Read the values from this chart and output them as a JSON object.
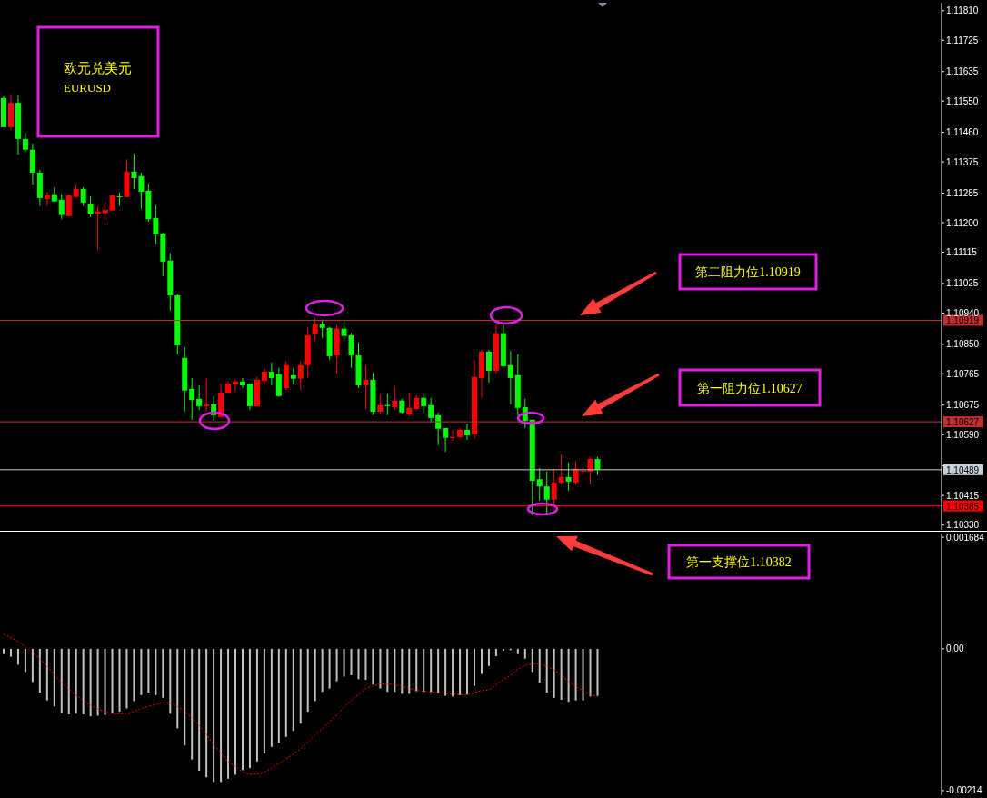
{
  "chart_data": [
    {
      "type": "candlestick",
      "title": "欧元兑美元",
      "subtitle": "EURUSD",
      "categories": [
        null,
        null,
        null,
        null,
        null,
        null,
        null,
        null,
        null,
        null,
        null,
        null,
        null,
        null,
        null,
        null,
        null,
        null,
        null,
        null,
        null,
        null,
        null,
        null,
        null,
        null,
        null,
        null,
        null,
        null,
        null,
        null,
        null,
        null,
        null,
        null,
        null,
        null,
        null,
        null,
        null,
        null,
        null,
        null,
        null,
        null,
        null,
        null,
        null,
        null,
        null,
        null,
        null,
        null,
        null,
        null,
        null,
        null,
        null,
        null,
        null,
        null,
        null,
        null,
        null,
        null,
        null,
        null,
        null,
        null,
        null,
        null,
        null,
        null,
        null,
        null,
        null,
        null,
        null,
        null,
        null,
        null,
        null,
        null,
        null,
        null,
        null,
        null,
        null,
        null,
        null,
        null,
        null,
        null,
        null,
        null,
        null,
        null,
        null,
        null,
        null,
        null,
        null,
        null,
        null,
        null,
        null,
        null,
        null,
        null,
        null,
        null,
        null,
        null,
        null,
        null,
        null,
        null,
        null,
        null,
        null,
        null,
        null,
        null,
        null,
        null,
        null,
        null,
        null,
        null
      ],
      "ohlc": [
        [
          1.11559,
          1.11564,
          1.11475,
          1.11475
        ],
        [
          1.11475,
          1.1157,
          1.11467,
          1.11545
        ],
        [
          1.11545,
          1.11567,
          1.11396,
          1.11441
        ],
        [
          1.11441,
          1.11459,
          1.11405,
          1.1141
        ],
        [
          1.1141,
          1.11428,
          1.1131,
          1.11344
        ],
        [
          1.11344,
          1.11352,
          1.11248,
          1.11271
        ],
        [
          1.11268,
          1.11289,
          1.11248,
          1.11279
        ],
        [
          1.11282,
          1.11302,
          1.11261,
          1.11261
        ],
        [
          1.11266,
          1.11282,
          1.1121,
          1.11222
        ],
        [
          1.11219,
          1.11282,
          1.11219,
          1.11279
        ],
        [
          1.11274,
          1.1131,
          1.11271,
          1.11297
        ],
        [
          1.11297,
          1.11302,
          1.11248,
          1.11258
        ],
        [
          1.11255,
          1.11276,
          1.11216,
          1.11224
        ],
        [
          1.11224,
          1.11248,
          1.11122,
          1.11232
        ],
        [
          1.11227,
          1.11258,
          1.11208,
          1.11237
        ],
        [
          1.11235,
          1.11282,
          1.11235,
          1.11279
        ],
        [
          1.11276,
          1.11287,
          1.11248,
          1.11274
        ],
        [
          1.11274,
          1.11383,
          1.11274,
          1.11347
        ],
        [
          1.11347,
          1.11399,
          1.11297,
          1.11328
        ],
        [
          1.11334,
          1.11344,
          1.1124,
          1.11289
        ],
        [
          1.11292,
          1.11313,
          1.11203,
          1.1121
        ],
        [
          1.11213,
          1.1125,
          1.11138,
          1.11166
        ],
        [
          1.11169,
          1.11171,
          1.11046,
          1.11088
        ],
        [
          1.11091,
          1.11112,
          1.10947,
          1.10991
        ],
        [
          1.10991,
          1.10994,
          1.10821,
          1.10847
        ],
        [
          1.10811,
          1.10842,
          1.10656,
          1.10717
        ],
        [
          1.10722,
          1.10753,
          1.10633,
          1.1069
        ],
        [
          1.10693,
          1.10732,
          1.10661,
          1.10672
        ],
        [
          1.10672,
          1.10751,
          1.10656,
          1.10677
        ],
        [
          1.10677,
          1.10701,
          1.1063,
          1.10646
        ],
        [
          1.10641,
          1.10737,
          1.10641,
          1.10711
        ],
        [
          1.10711,
          1.10743,
          1.10709,
          1.10737
        ],
        [
          1.10735,
          1.10748,
          1.10714,
          1.10743
        ],
        [
          1.10743,
          1.10753,
          1.10724,
          1.10732
        ],
        [
          1.10737,
          1.10737,
          1.10661,
          1.10672
        ],
        [
          1.10672,
          1.10756,
          1.10672,
          1.10748
        ],
        [
          1.10745,
          1.10782,
          1.10735,
          1.10771
        ],
        [
          1.10771,
          1.10798,
          1.10732,
          1.10753
        ],
        [
          1.10764,
          1.10782,
          1.10698,
          1.10701
        ],
        [
          1.10724,
          1.10803,
          1.10719,
          1.1079
        ],
        [
          1.10761,
          1.10782,
          1.10735,
          1.10751
        ],
        [
          1.10751,
          1.10803,
          1.10719,
          1.1079
        ],
        [
          1.1079,
          1.109,
          1.10753,
          1.10876
        ],
        [
          1.10879,
          1.10926,
          1.1086,
          1.10908
        ],
        [
          1.10908,
          1.10921,
          1.10868,
          1.10897
        ],
        [
          1.10897,
          1.109,
          1.10805,
          1.10816
        ],
        [
          1.10818,
          1.10905,
          1.10766,
          1.10895
        ],
        [
          1.10895,
          1.10916,
          1.10866,
          1.10874
        ],
        [
          1.10876,
          1.10882,
          1.10782,
          1.10818
        ],
        [
          1.10818,
          1.10855,
          1.10724,
          1.10732
        ],
        [
          1.10732,
          1.1079,
          1.10664,
          1.10748
        ],
        [
          1.10748,
          1.10769,
          1.10646,
          1.10656
        ],
        [
          1.10656,
          1.10706,
          1.10648,
          1.10675
        ],
        [
          1.10675,
          1.10709,
          1.10646,
          1.10672
        ],
        [
          1.10669,
          1.1073,
          1.10661,
          1.10688
        ],
        [
          1.10688,
          1.10693,
          1.10651,
          1.10654
        ],
        [
          1.10648,
          1.10711,
          1.10643,
          1.10667
        ],
        [
          1.10664,
          1.10703,
          1.10661,
          1.10696
        ],
        [
          1.10696,
          1.10706,
          1.10651,
          1.10672
        ],
        [
          1.10675,
          1.10696,
          1.10625,
          1.10638
        ],
        [
          1.10646,
          1.10654,
          1.1056,
          1.10607
        ],
        [
          1.10609,
          1.10609,
          1.10541,
          1.10581
        ],
        [
          1.10581,
          1.10604,
          1.10573,
          1.10583
        ],
        [
          1.10583,
          1.10609,
          1.10581,
          1.10604
        ],
        [
          1.10604,
          1.10622,
          1.10575,
          1.10588
        ],
        [
          1.10591,
          1.10805,
          1.10578,
          1.10756
        ],
        [
          1.10753,
          1.10834,
          1.10696,
          1.10829
        ],
        [
          1.10829,
          1.10834,
          1.1074,
          1.10774
        ],
        [
          1.10774,
          1.10908,
          1.10766,
          1.10882
        ],
        [
          1.10882,
          1.10908,
          1.10787,
          1.10787
        ],
        [
          1.1079,
          1.10831,
          1.10677,
          1.10753
        ],
        [
          1.10761,
          1.10821,
          1.10646,
          1.10667
        ],
        [
          1.10669,
          1.10693,
          1.10609,
          1.1063
        ],
        [
          1.10633,
          1.10633,
          1.10358,
          1.10457
        ],
        [
          1.10462,
          1.10494,
          1.104,
          1.10441
        ],
        [
          1.10441,
          1.10484,
          1.10358,
          1.10403
        ],
        [
          1.10403,
          1.10489,
          1.10387,
          1.10452
        ],
        [
          1.10452,
          1.10534,
          1.10447,
          1.10468
        ],
        [
          1.10468,
          1.1051,
          1.10429,
          1.10455
        ],
        [
          1.10452,
          1.10515,
          1.10447,
          1.10492
        ],
        [
          1.10484,
          1.10497,
          1.10479,
          1.10486
        ],
        [
          1.10484,
          1.10526,
          1.10447,
          1.1052
        ],
        [
          1.1052,
          1.10526,
          1.10473,
          1.10489
        ],
        null,
        null,
        null,
        null,
        null,
        null,
        null,
        null,
        null,
        null,
        null,
        null,
        null,
        null,
        null,
        null,
        null,
        null,
        null,
        null,
        null,
        null,
        null,
        null,
        null,
        null,
        null,
        null,
        null,
        null,
        null,
        null,
        null,
        null,
        null,
        null,
        null,
        null,
        null,
        null,
        null,
        null,
        null,
        null,
        null,
        null,
        null
      ],
      "colors": [
        "#00ff00",
        "#ff0000",
        "#00ff00",
        "#00ff00",
        "#00ff00",
        "#00ff00",
        "#ff0000",
        "#00ff00",
        "#00ff00",
        "#ff0000",
        "#ff0000",
        "#00ff00",
        "#00ff00",
        "#ff0000",
        "#ff0000",
        "#ff0000",
        "#00ff00",
        "#ff0000",
        "#00ff00",
        "#00ff00",
        "#00ff00",
        "#00ff00",
        "#00ff00",
        "#00ff00",
        "#00ff00",
        "#00ff00",
        "#00ff00",
        "#00ff00",
        "#ff0000",
        "#00ff00",
        "#ff0000",
        "#ff0000",
        "#ff0000",
        "#00ff00",
        "#00ff00",
        "#ff0000",
        "#ff0000",
        "#00ff00",
        "#00ff00",
        "#ff0000",
        "#00ff00",
        "#ff0000",
        "#ff0000",
        "#ff0000",
        "#00ff00",
        "#00ff00",
        "#ff0000",
        "#00ff00",
        "#00ff00",
        "#00ff00",
        "#ff0000",
        "#00ff00",
        "#ff0000",
        "#00ff00",
        "#ff0000",
        "#00ff00",
        "#ff0000",
        "#ff0000",
        "#00ff00",
        "#00ff00",
        "#00ff00",
        "#00ff00",
        "#ff0000",
        "#ff0000",
        "#00ff00",
        "#ff0000",
        "#ff0000",
        "#00ff00",
        "#ff0000",
        "#00ff00",
        "#00ff00",
        "#00ff00",
        "#00ff00",
        "#00ff00",
        "#00ff00",
        "#00ff00",
        "#ff0000",
        "#ff0000",
        "#00ff00",
        "#ff0000",
        "#ff0000",
        "#ff0000",
        "#00ff00",
        null,
        null,
        null,
        null,
        null,
        null,
        null,
        null,
        null,
        null,
        null,
        null,
        null,
        null,
        null,
        null,
        null,
        null,
        null,
        null,
        null,
        null,
        null,
        null,
        null,
        null,
        null,
        null,
        null,
        null,
        null,
        null,
        null,
        null,
        null,
        null,
        null,
        null,
        null,
        null,
        null,
        null,
        null,
        null,
        null,
        null,
        null
      ],
      "ylim": [
        1.10316,
        1.11833
      ],
      "yticks": [
        {
          "value": 1.1181,
          "label": "1.11810"
        },
        {
          "value": 1.11725,
          "label": "1.11725"
        },
        {
          "value": 1.11635,
          "label": "1.11635"
        },
        {
          "value": 1.1155,
          "label": "1.11550"
        },
        {
          "value": 1.1146,
          "label": "1.11460"
        },
        {
          "value": 1.11375,
          "label": "1.11375"
        },
        {
          "value": 1.11285,
          "label": "1.11285"
        },
        {
          "value": 1.112,
          "label": "1.11200"
        },
        {
          "value": 1.11115,
          "label": "1.11115"
        },
        {
          "value": 1.11025,
          "label": "1.11025"
        },
        {
          "value": 1.1094,
          "label": "1.10940"
        },
        {
          "value": 1.1085,
          "label": "1.10850"
        },
        {
          "value": 1.10765,
          "label": "1.10765"
        },
        {
          "value": 1.10675,
          "label": "1.10675"
        },
        {
          "value": 1.1059,
          "label": "1.10590"
        },
        {
          "value": 1.105,
          "label": null
        },
        {
          "value": 1.10415,
          "label": "1.10415"
        },
        {
          "value": 1.1033,
          "label": "1.10330"
        }
      ],
      "ref_lines": [
        {
          "axis": "y",
          "value": 1.10919,
          "label": "1.10919",
          "color": "#c03030"
        },
        {
          "axis": "y",
          "value": 1.10627,
          "label": "1.10627",
          "color": "#c03030"
        },
        {
          "axis": "y",
          "value": 1.10489,
          "label": "1.10489",
          "color": "#c8d0d8"
        },
        {
          "axis": "y",
          "value": 1.10385,
          "label": "1.10385",
          "color": "#ff0000"
        }
      ],
      "annotations": [
        "第二阻力位1.10919",
        "第一阻力位1.10627",
        "第一支撑位1.10382"
      ]
    },
    {
      "type": "bar",
      "categories": [
        null,
        null,
        null,
        null,
        null,
        null,
        null,
        null,
        null,
        null,
        null,
        null,
        null,
        null,
        null,
        null,
        null,
        null,
        null,
        null,
        null,
        null,
        null,
        null,
        null,
        null,
        null,
        null,
        null,
        null,
        null,
        null,
        null,
        null,
        null,
        null,
        null,
        null,
        null,
        null,
        null,
        null,
        null,
        null,
        null,
        null,
        null,
        null,
        null,
        null,
        null,
        null,
        null,
        null,
        null,
        null,
        null,
        null,
        null,
        null,
        null,
        null,
        null,
        null,
        null,
        null,
        null,
        null,
        null,
        null,
        null,
        null,
        null,
        null,
        null,
        null,
        null,
        null,
        null,
        null,
        null,
        null,
        null,
        null,
        null,
        null,
        null,
        null,
        null,
        null,
        null,
        null,
        null,
        null,
        null,
        null,
        null,
        null,
        null,
        null,
        null,
        null,
        null,
        null,
        null,
        null,
        null,
        null,
        null,
        null,
        null,
        null,
        null,
        null,
        null,
        null,
        null,
        null,
        null,
        null,
        null,
        null,
        null,
        null,
        null,
        null,
        null,
        null,
        null,
        null
      ],
      "series": [
        {
          "type": "bar",
          "color": "#c0c0c0",
          "values": [
            -8e-05,
            -0.00012,
            -0.00024,
            -0.00035,
            -0.0005,
            -0.00066,
            -0.00078,
            -0.00087,
            -0.00097,
            -0.00099,
            -0.00098,
            -0.00099,
            -0.00102,
            -0.00101,
            -0.001,
            -0.00097,
            -0.00095,
            -0.0009,
            -0.00079,
            -0.0007,
            -0.00066,
            -0.0007,
            -0.00074,
            -0.00098,
            -0.0012,
            -0.00146,
            -0.00167,
            -0.00184,
            -0.00194,
            -0.00201,
            -0.00201,
            -0.00196,
            -0.0019,
            -0.00183,
            -0.0018,
            -0.0017,
            -0.00158,
            -0.00148,
            -0.00142,
            -0.00133,
            -0.00124,
            -0.00113,
            -0.00095,
            -0.00079,
            -0.00065,
            -0.0006,
            -0.00049,
            -0.00042,
            -0.0004,
            -0.00046,
            -0.00047,
            -0.00054,
            -0.0006,
            -0.00065,
            -0.00065,
            -0.00068,
            -0.00068,
            -0.00064,
            -0.00065,
            -0.00065,
            -0.00067,
            -0.00071,
            -0.00072,
            -0.0007,
            -0.00069,
            -0.00056,
            -0.00038,
            -0.00026,
            -0.00011,
            -3e-05,
            -2e-05,
            -8e-05,
            -0.00015,
            -0.00035,
            -0.00051,
            -0.00066,
            -0.00074,
            -0.00077,
            -0.0008,
            -0.00078,
            -0.00078,
            -0.00072,
            -0.00071,
            null,
            null,
            null,
            null,
            null,
            null,
            null,
            null,
            null,
            null,
            null,
            null,
            null,
            null,
            null,
            null,
            null,
            null,
            null,
            null,
            null,
            null,
            null,
            null,
            null,
            null,
            null,
            null,
            null,
            null,
            null,
            null,
            null,
            null,
            null,
            null,
            null,
            null,
            null,
            null,
            null,
            null,
            null,
            null,
            null,
            null,
            null
          ]
        },
        {
          "type": "line",
          "color": "#ff0000",
          "line_style": "dotted",
          "values": [
            0.00022,
            0.00017,
            0.00011,
            3e-05,
            -6e-05,
            -0.00015,
            -0.00026,
            -0.00039,
            -0.00051,
            -0.00061,
            -0.0007,
            -0.00078,
            -0.00085,
            -0.00091,
            -0.00095,
            -0.00098,
            -0.00098,
            -0.00098,
            -0.00094,
            -0.0009,
            -0.00087,
            -0.00084,
            -0.00081,
            -0.00082,
            -0.00087,
            -0.00094,
            -0.00104,
            -0.00116,
            -0.00129,
            -0.00145,
            -0.00157,
            -0.00171,
            -0.00177,
            -0.00186,
            -0.00189,
            -0.00189,
            -0.00186,
            -0.0018,
            -0.00173,
            -0.00166,
            -0.00159,
            -0.00151,
            -0.00141,
            -0.0013,
            -0.00121,
            -0.0011,
            -0.001,
            -0.00088,
            -0.00078,
            -0.00069,
            -0.0006,
            -0.00056,
            -0.00053,
            -0.00053,
            -0.00054,
            -0.00057,
            -0.0006,
            -0.00063,
            -0.00064,
            -0.00065,
            -0.00066,
            -0.00067,
            -0.00068,
            -0.00069,
            -0.00069,
            -0.00066,
            -0.00063,
            -0.00062,
            -0.00054,
            -0.00047,
            -0.0004,
            -0.00031,
            -0.00025,
            -0.00023,
            -0.00023,
            -0.00026,
            -0.00032,
            -0.0004,
            -0.00049,
            -0.00057,
            -0.00063,
            -0.00069,
            -0.00072,
            null,
            null,
            null,
            null,
            null,
            null,
            null,
            null,
            null,
            null,
            null,
            null,
            null,
            null,
            null,
            null,
            null,
            null,
            null,
            null,
            null,
            null,
            null,
            null,
            null,
            null,
            null,
            null,
            null,
            null,
            null,
            null,
            null,
            null,
            null,
            null,
            null,
            null,
            null,
            null,
            null,
            null,
            null,
            null,
            null,
            null,
            null
          ]
        }
      ],
      "ylim": [
        -0.00221,
        0.00174
      ],
      "yticks": [
        {
          "value": 0.001684,
          "label": "0.001684"
        },
        {
          "value": 0,
          "label": "0.00"
        },
        {
          "value": -0.00214,
          "label": "-0.00214"
        }
      ]
    }
  ]
}
